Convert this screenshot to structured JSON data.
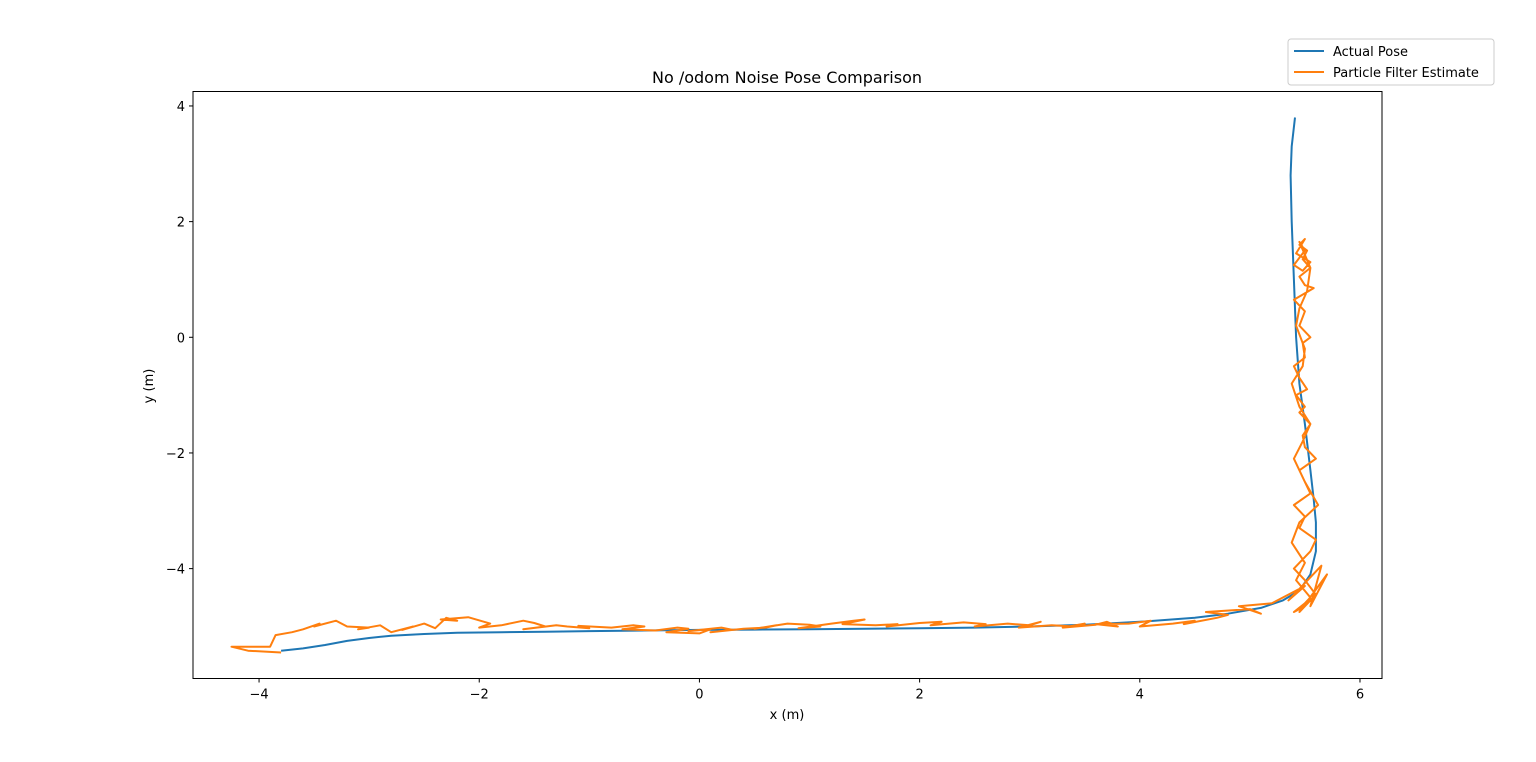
{
  "chart_data": {
    "type": "line",
    "title": "No /odom Noise Pose Comparison",
    "xlabel": "x (m)",
    "ylabel": "y (m)",
    "xlim": [
      -4.6,
      6.2
    ],
    "ylim": [
      -5.9,
      4.25
    ],
    "xticks": [
      -4,
      -2,
      0,
      2,
      4,
      6
    ],
    "yticks": [
      -4,
      -2,
      0,
      2,
      4
    ],
    "xtick_labels": [
      "−4",
      "−2",
      "0",
      "2",
      "4",
      "6"
    ],
    "ytick_labels": [
      "−4",
      "−2",
      "0",
      "2",
      "4"
    ],
    "grid": false,
    "legend_position": "upper-right outside",
    "series": [
      {
        "name": "Actual Pose",
        "color": "#1f77b4",
        "x": [
          -3.8,
          -3.6,
          -3.4,
          -3.2,
          -3.0,
          -2.8,
          -2.5,
          -2.2,
          -1.8,
          -1.4,
          -1.0,
          -0.5,
          0.0,
          0.5,
          1.0,
          1.5,
          2.0,
          2.5,
          3.0,
          3.5,
          4.0,
          4.5,
          4.8,
          5.1,
          5.3,
          5.45,
          5.55,
          5.6,
          5.6,
          5.58,
          5.55,
          5.5,
          5.45,
          5.42,
          5.4,
          5.38,
          5.37,
          5.38,
          5.41
        ],
        "y": [
          -5.42,
          -5.38,
          -5.32,
          -5.25,
          -5.2,
          -5.16,
          -5.13,
          -5.11,
          -5.1,
          -5.09,
          -5.08,
          -5.07,
          -5.06,
          -5.055,
          -5.05,
          -5.04,
          -5.03,
          -5.02,
          -5.0,
          -4.97,
          -4.92,
          -4.85,
          -4.78,
          -4.68,
          -4.55,
          -4.38,
          -4.1,
          -3.7,
          -3.2,
          -2.8,
          -2.3,
          -1.5,
          -0.8,
          0.0,
          1.0,
          2.0,
          2.8,
          3.3,
          3.8
        ]
      },
      {
        "name": "Particle Filter Estimate",
        "color": "#ff7f0e",
        "x": [
          -3.8,
          -4.1,
          -4.25,
          -3.9,
          -3.85,
          -3.7,
          -3.6,
          -3.45,
          -3.5,
          -3.3,
          -3.2,
          -3.0,
          -3.1,
          -2.9,
          -2.8,
          -2.6,
          -2.7,
          -2.5,
          -2.4,
          -2.3,
          -2.2,
          -2.35,
          -2.1,
          -1.9,
          -2.0,
          -1.8,
          -1.6,
          -1.5,
          -1.4,
          -1.6,
          -1.3,
          -1.2,
          -1.0,
          -1.1,
          -0.8,
          -0.6,
          -0.5,
          -0.7,
          -0.4,
          -0.2,
          -0.1,
          -0.3,
          0.0,
          0.1,
          -0.1,
          0.2,
          0.3,
          0.1,
          0.4,
          0.6,
          0.7,
          0.5,
          0.8,
          1.0,
          1.1,
          0.9,
          1.2,
          1.4,
          1.5,
          1.3,
          1.6,
          1.8,
          1.7,
          2.0,
          2.2,
          2.1,
          2.4,
          2.6,
          2.5,
          2.8,
          3.0,
          3.1,
          2.9,
          3.2,
          3.4,
          3.5,
          3.3,
          3.6,
          3.7,
          3.8,
          3.6,
          3.9,
          4.1,
          4.0,
          4.3,
          4.5,
          4.4,
          4.7,
          4.8,
          4.6,
          5.0,
          5.1,
          4.9,
          5.2,
          5.3,
          5.5,
          5.35,
          5.65,
          5.55,
          5.7,
          5.45,
          5.6,
          5.5,
          5.4,
          5.55,
          5.6,
          5.45,
          5.5,
          5.4,
          5.55,
          5.5,
          5.45,
          5.6,
          5.5,
          5.48,
          5.55,
          5.45,
          5.5,
          5.42,
          5.52,
          5.45,
          5.4,
          5.5,
          5.48,
          5.55,
          5.45,
          5.5,
          5.4,
          5.58,
          5.5,
          5.45,
          5.55,
          5.48,
          5.52,
          5.45,
          5.5,
          5.42,
          5.55,
          5.48,
          5.4,
          5.5,
          5.45,
          5.55,
          5.52,
          5.45,
          5.42,
          5.5,
          5.48,
          5.38,
          5.45,
          5.55,
          5.48,
          5.4,
          5.5,
          5.62,
          5.45,
          5.38,
          5.5,
          5.42,
          5.55,
          5.45,
          5.4,
          5.5
        ],
        "y": [
          -5.45,
          -5.42,
          -5.35,
          -5.35,
          -5.15,
          -5.1,
          -5.05,
          -4.95,
          -5.0,
          -4.9,
          -5.0,
          -5.02,
          -5.05,
          -4.98,
          -5.1,
          -5.0,
          -5.06,
          -4.95,
          -5.03,
          -4.85,
          -4.9,
          -4.88,
          -4.84,
          -4.95,
          -5.02,
          -4.98,
          -4.9,
          -4.94,
          -5.0,
          -5.05,
          -4.98,
          -5.0,
          -5.03,
          -4.99,
          -5.02,
          -4.98,
          -5.0,
          -5.05,
          -5.07,
          -5.02,
          -5.04,
          -5.1,
          -5.12,
          -5.05,
          -5.08,
          -5.02,
          -5.06,
          -5.1,
          -5.04,
          -5.02,
          -4.98,
          -5.04,
          -4.95,
          -4.97,
          -5.0,
          -5.03,
          -4.95,
          -4.9,
          -4.88,
          -4.96,
          -4.98,
          -4.96,
          -5.0,
          -4.94,
          -4.92,
          -4.98,
          -4.93,
          -4.96,
          -5.0,
          -4.95,
          -4.98,
          -4.92,
          -5.02,
          -4.98,
          -5.0,
          -4.95,
          -5.02,
          -4.97,
          -4.92,
          -5.0,
          -4.96,
          -4.95,
          -4.9,
          -5.0,
          -4.95,
          -4.9,
          -4.96,
          -4.85,
          -4.8,
          -4.75,
          -4.7,
          -4.78,
          -4.65,
          -4.6,
          -4.5,
          -4.3,
          -4.55,
          -3.95,
          -4.65,
          -4.1,
          -4.75,
          -4.45,
          -4.2,
          -4.0,
          -3.7,
          -3.5,
          -3.3,
          -3.1,
          -2.9,
          -2.7,
          -2.5,
          -2.3,
          -2.1,
          -1.9,
          -1.7,
          -1.5,
          -1.3,
          -1.2,
          -1.0,
          -0.9,
          -0.7,
          -0.5,
          -0.35,
          -0.1,
          0.0,
          0.2,
          0.45,
          0.65,
          0.85,
          0.9,
          1.05,
          1.2,
          1.35,
          1.5,
          1.6,
          1.7,
          1.45,
          1.3,
          1.15,
          1.25,
          1.5,
          1.65,
          1.2,
          0.8,
          0.5,
          0.2,
          -0.2,
          -0.5,
          -0.8,
          -1.2,
          -1.5,
          -1.8,
          -2.1,
          -2.5,
          -2.9,
          -3.2,
          -3.55,
          -3.9,
          -4.2,
          -4.5,
          -4.7,
          -4.75,
          -4.6
        ]
      }
    ]
  }
}
